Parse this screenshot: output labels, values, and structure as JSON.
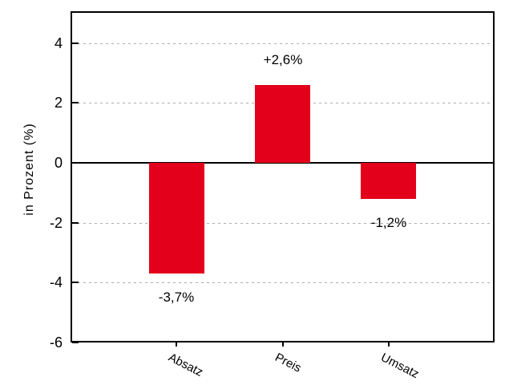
{
  "chart_data": {
    "type": "bar",
    "title": "",
    "xlabel": "",
    "ylabel": "in Prozent (%)",
    "categories": [
      "Absatz",
      "Preis",
      "Umsatz"
    ],
    "values": [
      -3.7,
      2.6,
      -1.2
    ],
    "bar_labels": [
      "-3,7%",
      "+2,6%",
      "-1,2%"
    ],
    "y_ticks": [
      4,
      2,
      0,
      -2,
      -4,
      -6
    ],
    "y_tick_labels": [
      "4",
      "2",
      "0",
      "-2",
      "-4",
      "-6"
    ],
    "grid_values": [
      4,
      2,
      -2,
      -4
    ],
    "ylim": [
      -6,
      5.07
    ],
    "grid": "dotted-horizontal",
    "legend_position": "none",
    "zero_line": true,
    "bar_color": "#e3001b"
  },
  "colors": {
    "background": "#ffffff",
    "axis": "#000000",
    "grid": "#adadad",
    "bar": "#e3001b",
    "text": "#000000"
  },
  "decorations": {
    "key_swatch_color": "#e3001b"
  }
}
